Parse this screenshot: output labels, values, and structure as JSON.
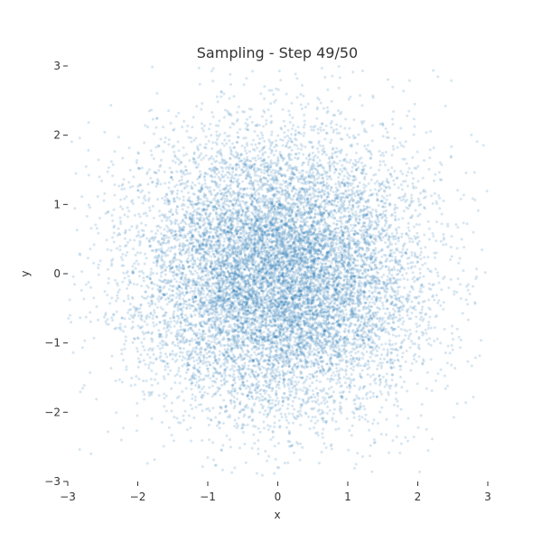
{
  "chart_data": {
    "type": "scatter",
    "title": "Sampling - Step 49/50",
    "xlabel": "x",
    "ylabel": "y",
    "xlim": [
      -3,
      3
    ],
    "ylim": [
      -3,
      3
    ],
    "xticks": [
      -3,
      -2,
      -1,
      0,
      1,
      2,
      3
    ],
    "yticks": [
      -3,
      -2,
      -1,
      0,
      1,
      2,
      3
    ],
    "xtick_labels": [
      "−3",
      "−2",
      "−1",
      "0",
      "1",
      "2",
      "3"
    ],
    "ytick_labels": [
      "−3",
      "−2",
      "−1",
      "0",
      "1",
      "2",
      "3"
    ],
    "grid": false,
    "legend": "none",
    "point_color": "#1f77b4",
    "distribution": {
      "shape": "isotropic-gaussian",
      "center": [
        0,
        0
      ],
      "spread": 1
    }
  }
}
